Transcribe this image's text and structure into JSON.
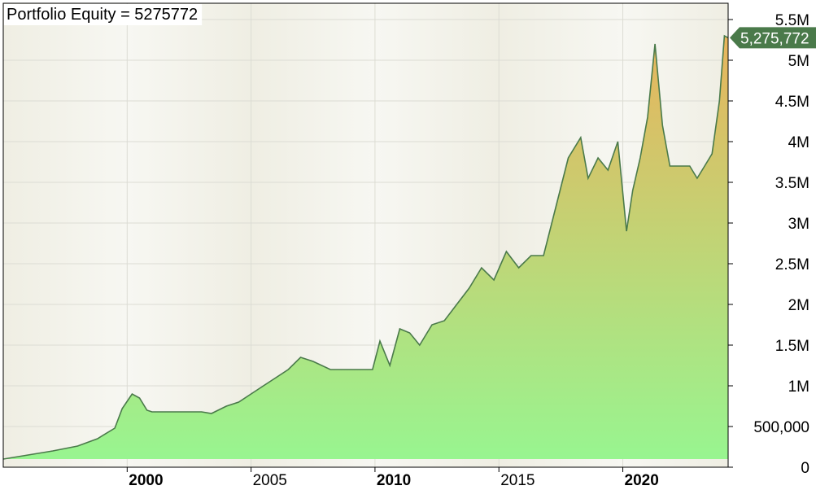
{
  "chart_data": {
    "type": "area",
    "title": "Portfolio Equity = 5275772",
    "last_value_label": "5,275,772",
    "xlabel": "",
    "ylabel": "",
    "xlim": [
      1995.0,
      2024.25
    ],
    "ylim": [
      0,
      5700000
    ],
    "y_ticks": [
      {
        "value": 0,
        "label": "0"
      },
      {
        "value": 500000,
        "label": "500,000"
      },
      {
        "value": 1000000,
        "label": "1M"
      },
      {
        "value": 1500000,
        "label": "1.5M"
      },
      {
        "value": 2000000,
        "label": "2M"
      },
      {
        "value": 2500000,
        "label": "2.5M"
      },
      {
        "value": 3000000,
        "label": "3M"
      },
      {
        "value": 3500000,
        "label": "3.5M"
      },
      {
        "value": 4000000,
        "label": "4M"
      },
      {
        "value": 4500000,
        "label": "4.5M"
      },
      {
        "value": 5000000,
        "label": "5M"
      },
      {
        "value": 5500000,
        "label": "5.5M"
      }
    ],
    "x_ticks": [
      {
        "value": 2000,
        "label": "2000",
        "major": true
      },
      {
        "value": 2005,
        "label": "2005",
        "major": false
      },
      {
        "value": 2010,
        "label": "2010",
        "major": true
      },
      {
        "value": 2015,
        "label": "2015",
        "major": false
      },
      {
        "value": 2020,
        "label": "2020",
        "major": true
      }
    ],
    "grid": true,
    "colors": {
      "line": "#4a7a4a",
      "fill_top": "#e8b45c",
      "fill_bottom": "#98f590",
      "band_dark": "#efeee3",
      "band_light": "#f7f7f2",
      "label_bg": "#4a7a4a",
      "label_text": "#ffffff"
    },
    "series": [
      {
        "x": [
          1995.0,
          1996.0,
          1997.0,
          1998.0,
          1998.8,
          1999.5,
          1999.8,
          2000.2,
          2000.5,
          2000.8,
          2001.0,
          2003.0,
          2003.4,
          2004.0,
          2004.5,
          2005.0,
          2005.5,
          2006.0,
          2006.5,
          2007.0,
          2007.5,
          2008.2,
          2009.9,
          2010.2,
          2010.6,
          2011.0,
          2011.4,
          2011.8,
          2012.3,
          2012.8,
          2013.3,
          2013.8,
          2014.3,
          2014.8,
          2015.3,
          2015.8,
          2016.3,
          2016.8,
          2017.3,
          2017.8,
          2018.3,
          2018.6,
          2019.0,
          2019.4,
          2019.8,
          2020.15,
          2020.4,
          2020.7,
          2021.0,
          2021.3,
          2021.6,
          2021.9,
          2022.2,
          2022.4,
          2022.7,
          2023.0,
          2023.3,
          2023.6,
          2023.9,
          2024.1,
          2024.25
        ],
        "y": [
          100000,
          150000,
          200000,
          260000,
          350000,
          480000,
          720000,
          900000,
          850000,
          700000,
          680000,
          680000,
          660000,
          750000,
          800000,
          900000,
          1000000,
          1100000,
          1200000,
          1350000,
          1300000,
          1200000,
          1200000,
          1550000,
          1250000,
          1700000,
          1650000,
          1500000,
          1750000,
          1800000,
          2000000,
          2200000,
          2450000,
          2300000,
          2650000,
          2450000,
          2600000,
          2600000,
          3200000,
          3800000,
          4050000,
          3550000,
          3800000,
          3650000,
          4000000,
          2900000,
          3400000,
          3800000,
          4300000,
          5200000,
          4200000,
          3700000,
          3700000,
          3700000,
          3700000,
          3550000,
          3700000,
          3850000,
          4500000,
          5300000,
          5275772
        ]
      }
    ]
  }
}
